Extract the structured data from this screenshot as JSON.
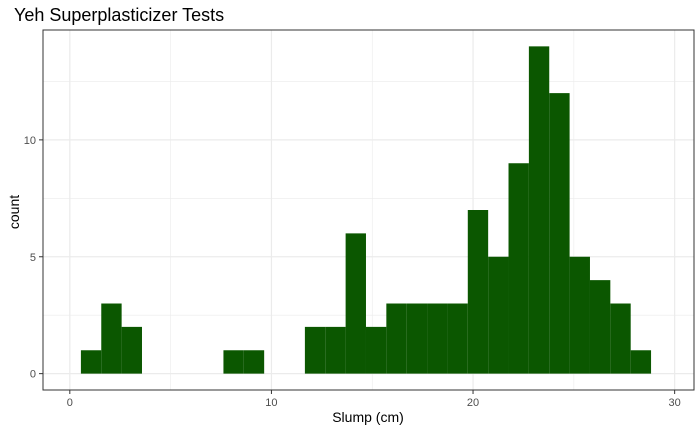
{
  "chart_data": {
    "type": "bar",
    "title": "Yeh Superplasticizer Tests",
    "xlabel": "Slump (cm)",
    "ylabel": "count",
    "bin_width": 1.01,
    "bins": [
      {
        "x_start": 0.55,
        "x_end": 1.56,
        "count": 1
      },
      {
        "x_start": 1.56,
        "x_end": 2.57,
        "count": 3
      },
      {
        "x_start": 2.57,
        "x_end": 3.58,
        "count": 2
      },
      {
        "x_start": 3.58,
        "x_end": 4.59,
        "count": 0
      },
      {
        "x_start": 4.59,
        "x_end": 5.6,
        "count": 0
      },
      {
        "x_start": 5.6,
        "x_end": 6.61,
        "count": 0
      },
      {
        "x_start": 6.61,
        "x_end": 7.62,
        "count": 0
      },
      {
        "x_start": 7.62,
        "x_end": 8.63,
        "count": 1
      },
      {
        "x_start": 8.63,
        "x_end": 9.64,
        "count": 1
      },
      {
        "x_start": 9.64,
        "x_end": 10.65,
        "count": 0
      },
      {
        "x_start": 10.65,
        "x_end": 11.66,
        "count": 0
      },
      {
        "x_start": 11.66,
        "x_end": 12.67,
        "count": 2
      },
      {
        "x_start": 12.67,
        "x_end": 13.68,
        "count": 2
      },
      {
        "x_start": 13.68,
        "x_end": 14.69,
        "count": 6
      },
      {
        "x_start": 14.69,
        "x_end": 15.7,
        "count": 2
      },
      {
        "x_start": 15.7,
        "x_end": 16.71,
        "count": 3
      },
      {
        "x_start": 16.71,
        "x_end": 17.72,
        "count": 3
      },
      {
        "x_start": 17.72,
        "x_end": 18.73,
        "count": 3
      },
      {
        "x_start": 18.73,
        "x_end": 19.74,
        "count": 3
      },
      {
        "x_start": 19.74,
        "x_end": 20.75,
        "count": 7
      },
      {
        "x_start": 20.75,
        "x_end": 21.76,
        "count": 5
      },
      {
        "x_start": 21.76,
        "x_end": 22.77,
        "count": 9
      },
      {
        "x_start": 22.77,
        "x_end": 23.78,
        "count": 14
      },
      {
        "x_start": 23.78,
        "x_end": 24.79,
        "count": 12
      },
      {
        "x_start": 24.79,
        "x_end": 25.8,
        "count": 5
      },
      {
        "x_start": 25.8,
        "x_end": 26.81,
        "count": 4
      },
      {
        "x_start": 26.81,
        "x_end": 27.82,
        "count": 3
      },
      {
        "x_start": 27.82,
        "x_end": 28.83,
        "count": 1
      }
    ],
    "xlim": [
      -1.33,
      30.96
    ],
    "ylim": [
      -0.7,
      14.7
    ],
    "x_ticks": [
      0,
      10,
      20,
      30
    ],
    "y_ticks": [
      0,
      5,
      10
    ],
    "x_minor_gridlines": [
      5,
      15,
      25
    ],
    "y_minor_gridlines": [
      2.5,
      7.5,
      12.5
    ],
    "grid": true,
    "bar_color": "#0b5700",
    "grid_color": "#ebebeb",
    "panel_border_color": "#333333"
  }
}
